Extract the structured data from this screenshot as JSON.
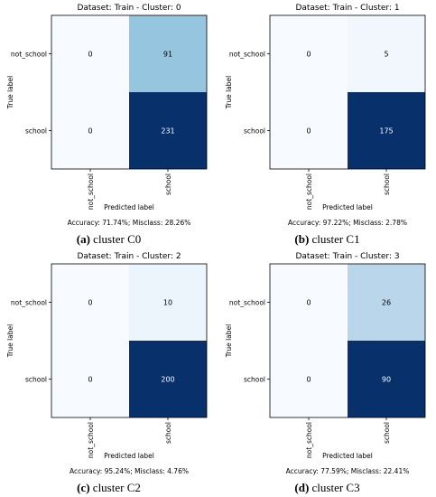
{
  "chart_data": [
    {
      "type": "heatmap",
      "title": "Dataset: Train - Cluster: 0",
      "xlabel": "Predicted label",
      "ylabel": "True label",
      "row_labels": [
        "not_school",
        "school"
      ],
      "col_labels": [
        "not_school",
        "school"
      ],
      "values": [
        [
          0,
          91
        ],
        [
          0,
          231
        ]
      ],
      "footer": "Accuracy: 71.74%; Misclass: 28.26%",
      "caption_letter": "(a)",
      "caption_text": "cluster C0"
    },
    {
      "type": "heatmap",
      "title": "Dataset: Train - Cluster: 1",
      "xlabel": "Predicted label",
      "ylabel": "True label",
      "row_labels": [
        "not_school",
        "school"
      ],
      "col_labels": [
        "not_school",
        "school"
      ],
      "values": [
        [
          0,
          5
        ],
        [
          0,
          175
        ]
      ],
      "footer": "Accuracy: 97.22%; Misclass: 2.78%",
      "caption_letter": "(b)",
      "caption_text": "cluster C1"
    },
    {
      "type": "heatmap",
      "title": "Dataset: Train - Cluster: 2",
      "xlabel": "Predicted label",
      "ylabel": "True label",
      "row_labels": [
        "not_school",
        "school"
      ],
      "col_labels": [
        "not_school",
        "school"
      ],
      "values": [
        [
          0,
          10
        ],
        [
          0,
          200
        ]
      ],
      "footer": "Accuracy: 95.24%; Misclass: 4.76%",
      "caption_letter": "(c)",
      "caption_text": "cluster C2"
    },
    {
      "type": "heatmap",
      "title": "Dataset: Train - Cluster: 3",
      "xlabel": "Predicted label",
      "ylabel": "True label",
      "row_labels": [
        "not_school",
        "school"
      ],
      "col_labels": [
        "not_school",
        "school"
      ],
      "values": [
        [
          0,
          26
        ],
        [
          0,
          90
        ]
      ],
      "footer": "Accuracy: 77.59%; Misclass: 22.41%",
      "caption_letter": "(d)",
      "caption_text": "cluster C3"
    }
  ]
}
